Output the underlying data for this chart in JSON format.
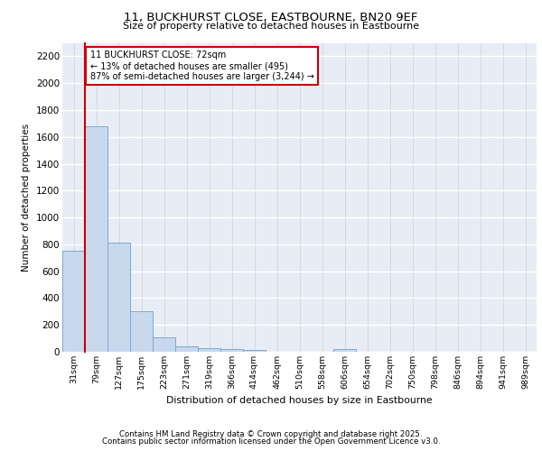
{
  "title": "11, BUCKHURST CLOSE, EASTBOURNE, BN20 9EF",
  "subtitle": "Size of property relative to detached houses in Eastbourne",
  "xlabel": "Distribution of detached houses by size in Eastbourne",
  "ylabel": "Number of detached properties",
  "bar_color": "#c8d9ee",
  "bar_edge_color": "#7aaad4",
  "background_color": "#e8edf5",
  "grid_color": "#d0d8e8",
  "vline_color": "#cc0000",
  "annotation_text": "11 BUCKHURST CLOSE: 72sqm\n← 13% of detached houses are smaller (495)\n87% of semi-detached houses are larger (3,244) →",
  "categories": [
    "31sqm",
    "79sqm",
    "127sqm",
    "175sqm",
    "223sqm",
    "271sqm",
    "319sqm",
    "366sqm",
    "414sqm",
    "462sqm",
    "510sqm",
    "558sqm",
    "606sqm",
    "654sqm",
    "702sqm",
    "750sqm",
    "798sqm",
    "846sqm",
    "894sqm",
    "941sqm",
    "989sqm"
  ],
  "values": [
    755,
    1680,
    810,
    300,
    110,
    40,
    28,
    20,
    14,
    3,
    3,
    3,
    20,
    3,
    3,
    3,
    3,
    3,
    3,
    3,
    3
  ],
  "ylim": [
    0,
    2300
  ],
  "yticks": [
    0,
    200,
    400,
    600,
    800,
    1000,
    1200,
    1400,
    1600,
    1800,
    2000,
    2200
  ],
  "footer_line1": "Contains HM Land Registry data © Crown copyright and database right 2025.",
  "footer_line2": "Contains public sector information licensed under the Open Government Licence v3.0."
}
